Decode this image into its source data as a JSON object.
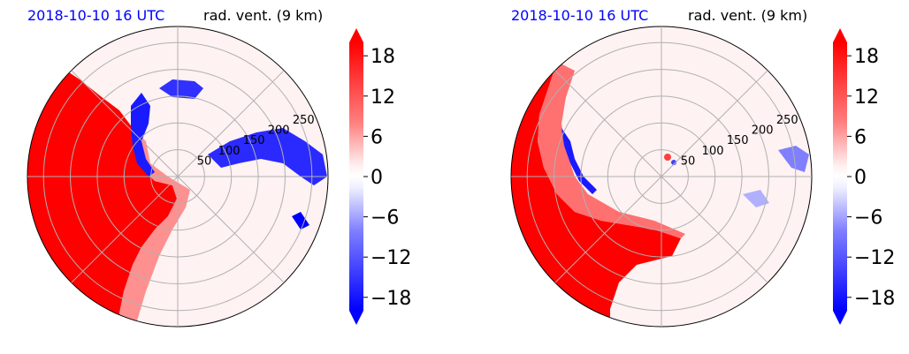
{
  "chart_data": [
    {
      "type": "heatmap",
      "projection": "polar",
      "date_label": "2018-10-10 16 UTC",
      "title": "rad. vent. (9 km)",
      "radial_ticks": [
        50,
        100,
        150,
        200,
        250
      ],
      "r_max": 280,
      "angular_grid_deg": 45,
      "grid": true,
      "colorbar": {
        "ticks": [
          "18",
          "12",
          "6",
          "0",
          "−6",
          "−12",
          "−18"
        ],
        "tick_values": [
          18,
          12,
          6,
          0,
          -6,
          -12,
          -18
        ],
        "vmin": -20,
        "vmax": 20,
        "colormap": "bwr",
        "extend": "both"
      },
      "features": {
        "positive_region": "strong red (≥18) over the west half, sharp front through center",
        "negative_region": "blue bands east of the front and east-northeast at 150–250"
      }
    },
    {
      "type": "heatmap",
      "projection": "polar",
      "date_label": "2018-10-10 16 UTC",
      "title": "rad. vent. (9 km)",
      "radial_ticks": [
        50,
        100,
        150,
        200,
        250
      ],
      "r_max": 280,
      "angular_grid_deg": 45,
      "grid": true,
      "colorbar": {
        "ticks": [
          "18",
          "12",
          "6",
          "0",
          "−6",
          "−12",
          "−18"
        ],
        "tick_values": [
          18,
          12,
          6,
          0,
          -6,
          -12,
          -18
        ],
        "vmin": -20,
        "vmax": 20,
        "colormap": "bwr",
        "extend": "both"
      },
      "features": {
        "positive_region": "strong red (≥18) crescent in west / southwest",
        "negative_region": "thin blue line along inner edge of red crescent; scattered weak blue east"
      }
    }
  ],
  "colors": {
    "red": "#ff0000",
    "blue": "#0000ff",
    "date_text": "#0000ff",
    "grid": "#b0b0b0"
  }
}
